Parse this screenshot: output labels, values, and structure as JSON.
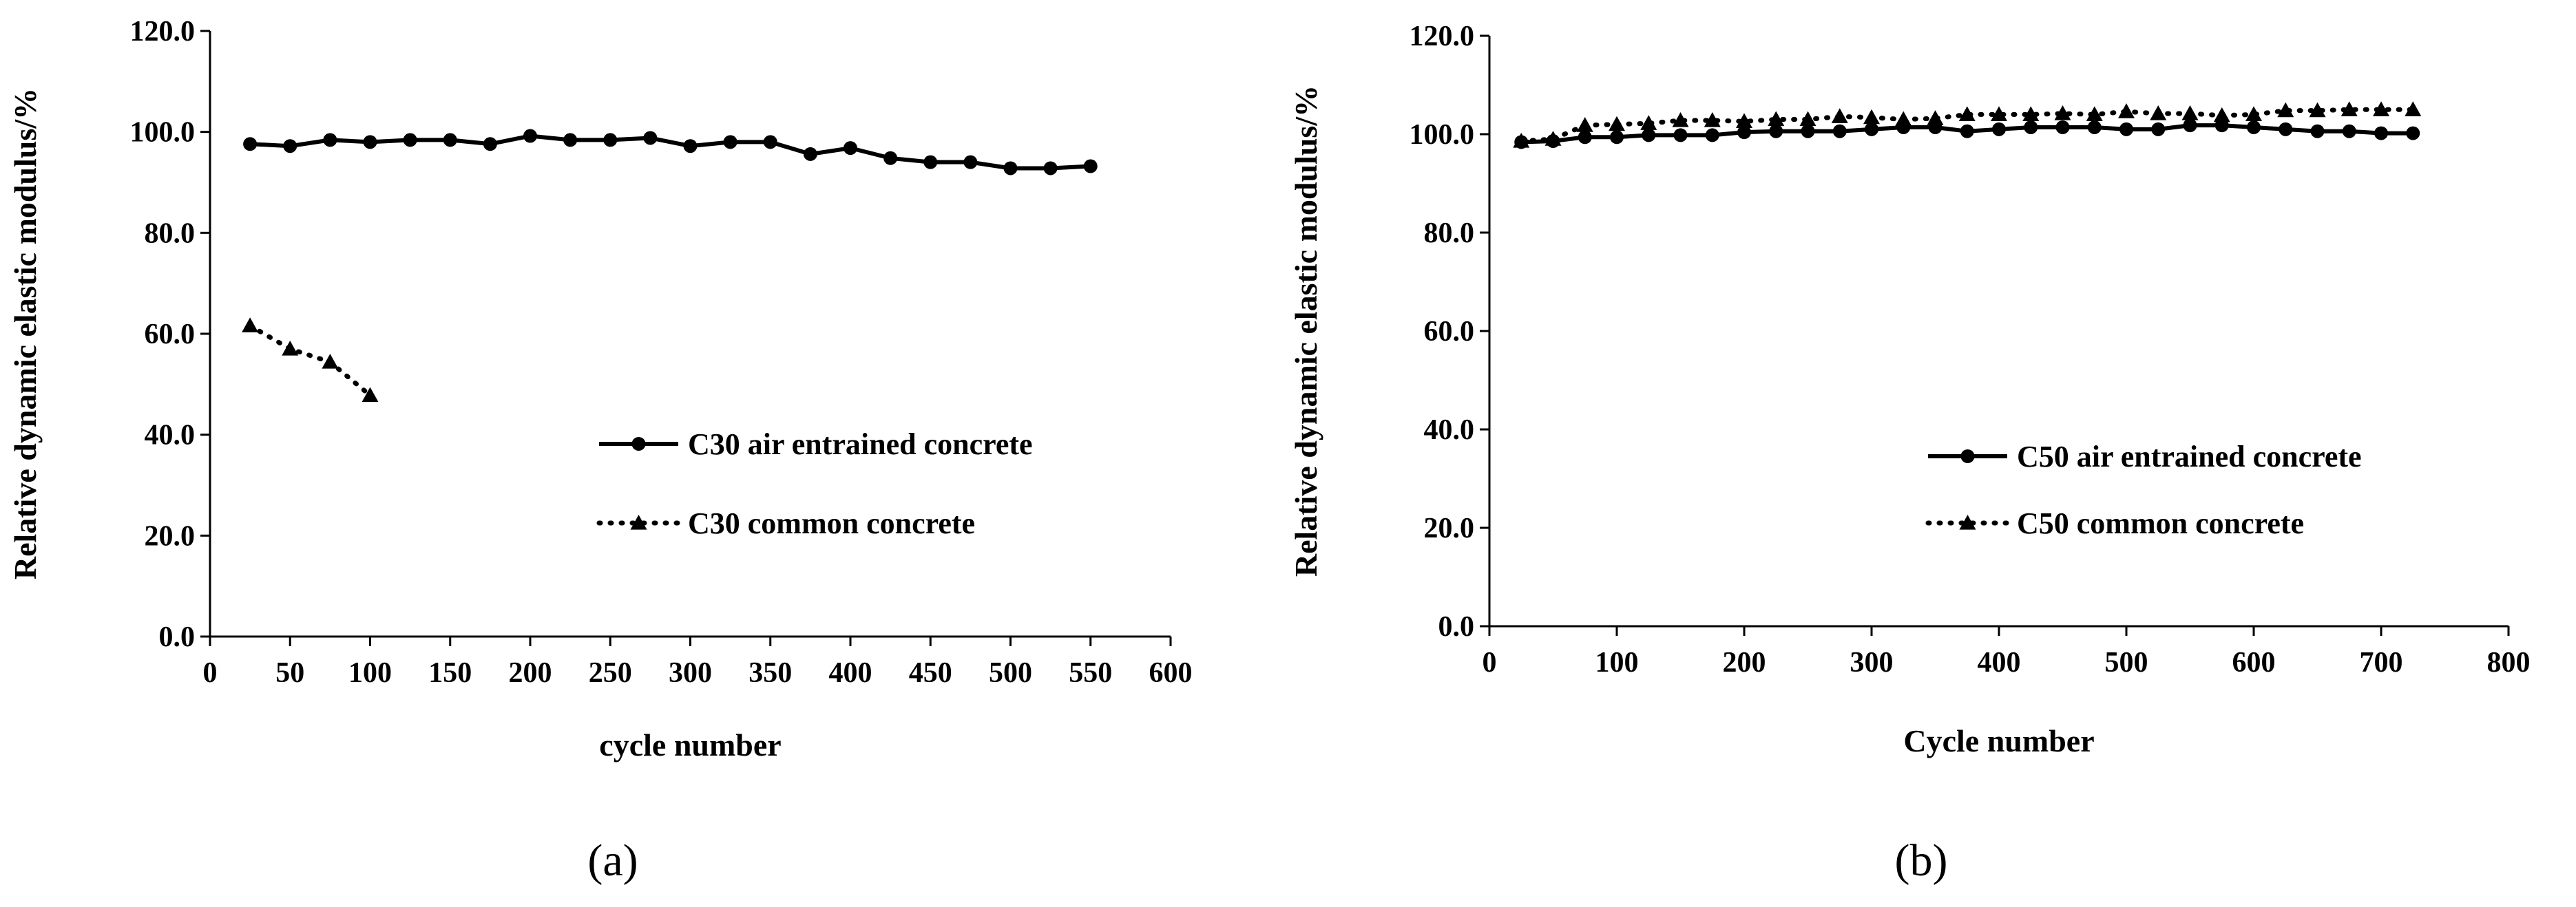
{
  "chart_data": [
    {
      "type": "line",
      "panel_label": "(a)",
      "xlabel": "cycle number",
      "ylabel": "Relative dynamic elastic modulus/%",
      "xlim": [
        0,
        600
      ],
      "ylim": [
        0,
        120
      ],
      "xticks": [
        "0",
        "50",
        "100",
        "150",
        "200",
        "250",
        "300",
        "350",
        "400",
        "450",
        "500",
        "550",
        "600"
      ],
      "yticks": [
        "0.0",
        "20.0",
        "40.0",
        "60.0",
        "80.0",
        "100.0",
        "120.0"
      ],
      "grid": false,
      "legend": "center-right",
      "series": [
        {
          "name": "C30 air entrained concrete",
          "style": "solid",
          "marker": "circle",
          "x": [
            25,
            50,
            75,
            100,
            125,
            150,
            175,
            200,
            225,
            250,
            275,
            300,
            325,
            350,
            375,
            400,
            425,
            450,
            475,
            500,
            525,
            550
          ],
          "y": [
            97.6,
            97.2,
            98.4,
            98.0,
            98.4,
            98.4,
            97.6,
            99.2,
            98.4,
            98.4,
            98.8,
            97.2,
            98.0,
            98.0,
            95.6,
            96.8,
            94.8,
            94.0,
            94.0,
            92.8,
            92.8,
            93.2
          ]
        },
        {
          "name": "C30 common concrete",
          "style": "dotted",
          "marker": "triangle",
          "x": [
            25,
            50,
            75,
            100
          ],
          "y": [
            61.6,
            57.0,
            54.4,
            47.8
          ]
        }
      ]
    },
    {
      "type": "line",
      "panel_label": "(b)",
      "xlabel": "Cycle number",
      "ylabel": "Relative dynamic elastic modulus/%",
      "xlim": [
        0,
        800
      ],
      "ylim": [
        0,
        120
      ],
      "xticks": [
        "0",
        "100",
        "200",
        "300",
        "400",
        "500",
        "600",
        "700",
        "800"
      ],
      "yticks": [
        "0.0",
        "20.0",
        "40.0",
        "60.0",
        "80.0",
        "100.0",
        "120.0"
      ],
      "grid": false,
      "legend": "center-right",
      "series": [
        {
          "name": "C50 air entrained concrete",
          "style": "solid",
          "marker": "circle",
          "x": [
            25,
            50,
            75,
            100,
            125,
            150,
            175,
            200,
            225,
            250,
            275,
            300,
            325,
            350,
            375,
            400,
            425,
            450,
            475,
            500,
            525,
            550,
            575,
            600,
            625,
            650,
            675,
            700,
            725
          ],
          "y": [
            98.4,
            98.6,
            99.4,
            99.4,
            99.8,
            99.8,
            99.8,
            100.4,
            100.6,
            100.6,
            100.6,
            101.0,
            101.4,
            101.4,
            100.6,
            101.0,
            101.4,
            101.4,
            101.4,
            101.0,
            101.0,
            101.8,
            101.8,
            101.4,
            101.0,
            100.6,
            100.6,
            100.2,
            100.2
          ]
        },
        {
          "name": "C50 common concrete",
          "style": "dotted",
          "marker": "triangle",
          "x": [
            25,
            50,
            75,
            100,
            125,
            150,
            175,
            200,
            225,
            250,
            275,
            300,
            325,
            350,
            375,
            400,
            425,
            450,
            475,
            500,
            525,
            550,
            575,
            600,
            625,
            650,
            675,
            700,
            725
          ],
          "y": [
            98.6,
            99.0,
            101.8,
            102.0,
            102.2,
            102.8,
            102.8,
            102.6,
            103.0,
            103.0,
            103.6,
            103.4,
            103.0,
            103.2,
            104.0,
            104.0,
            104.0,
            104.2,
            104.0,
            104.6,
            104.2,
            104.2,
            103.8,
            104.0,
            104.8,
            104.8,
            105.0,
            105.0,
            105.0
          ]
        }
      ]
    }
  ]
}
